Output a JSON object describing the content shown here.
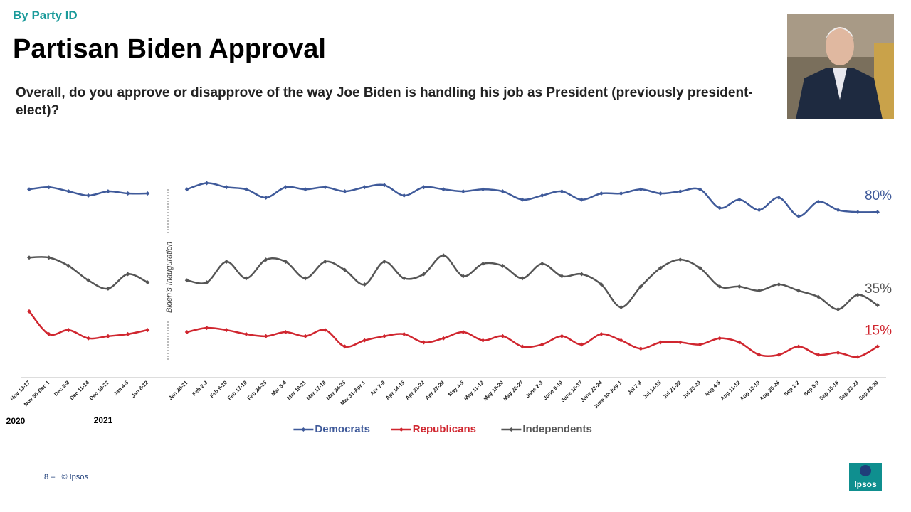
{
  "header": {
    "kicker": "By Party ID",
    "title": "Partisan Biden Approval",
    "question": "Overall, do you approve or disapprove of the way Joe Biden is handling his job as President (previously president-elect)?"
  },
  "chart_data": {
    "type": "line",
    "categories": [
      "Nov 13-17",
      "Nov 30-Dec 1",
      "Dec 2-8",
      "Dec 11-14",
      "Dec 18-22",
      "Jan 4-5",
      "Jan 8-12",
      null,
      "Jan 20-21",
      "Feb 2-3",
      "Feb 9-10",
      "Feb 17-18",
      "Feb 24-25",
      "Mar 3-4",
      "Mar 10-11",
      "Mar 17-18",
      "Mar 24-25",
      "Mar 31-Apr 1",
      "Apr 7-8",
      "Apr 14-15",
      "Apr 21-22",
      "Apr 27-28",
      "May 4-5",
      "May 11-12",
      "May 19-20",
      "May 26-27",
      "June 2-3",
      "June 9-10",
      "June 16-17",
      "June 23-24",
      "June 30-July 1",
      "Jul 7-8",
      "Jul 14-15",
      "Jul 21-22",
      "Jul 28-29",
      "Aug 4-5",
      "Aug 11-12",
      "Aug 18-19",
      "Aug 25-26",
      "Sep 1-2",
      "Sep 8-9",
      "Sep 15-16",
      "Sep 22-23",
      "Sep 29-30"
    ],
    "year_labels": [
      "2020",
      "2021"
    ],
    "annotation": "Biden's Inauguration",
    "ylim": [
      0,
      100
    ],
    "series": [
      {
        "name": "Democrats",
        "color": "#3f5a9a",
        "end_label": "80%",
        "values": [
          91,
          92,
          90,
          88,
          90,
          89,
          89,
          null,
          91,
          94,
          92,
          91,
          87,
          92,
          91,
          92,
          90,
          92,
          93,
          88,
          92,
          91,
          90,
          91,
          90,
          86,
          88,
          90,
          86,
          89,
          89,
          91,
          89,
          90,
          91,
          82,
          86,
          81,
          87,
          78,
          85,
          81,
          80,
          80
        ]
      },
      {
        "name": "Republicans",
        "color": "#d0262f",
        "end_label": "15%",
        "values": [
          32,
          21,
          23,
          19,
          20,
          21,
          23,
          null,
          22,
          24,
          23,
          21,
          20,
          22,
          20,
          23,
          15,
          18,
          20,
          21,
          17,
          19,
          22,
          18,
          20,
          15,
          16,
          20,
          16,
          21,
          18,
          14,
          17,
          17,
          16,
          19,
          17,
          11,
          11,
          15,
          11,
          12,
          10,
          15
        ]
      },
      {
        "name": "Independents",
        "color": "#555555",
        "end_label": "35%",
        "values": [
          58,
          58,
          54,
          47,
          43,
          50,
          46,
          null,
          47,
          46,
          56,
          48,
          57,
          56,
          48,
          56,
          52,
          45,
          56,
          48,
          50,
          59,
          49,
          55,
          54,
          48,
          55,
          49,
          50,
          45,
          34,
          44,
          53,
          57,
          53,
          44,
          44,
          42,
          45,
          42,
          39,
          33,
          40,
          35
        ]
      }
    ]
  },
  "footer": {
    "page": "8 –",
    "copyright": "© Ipsos",
    "logo": "Ipsos"
  }
}
